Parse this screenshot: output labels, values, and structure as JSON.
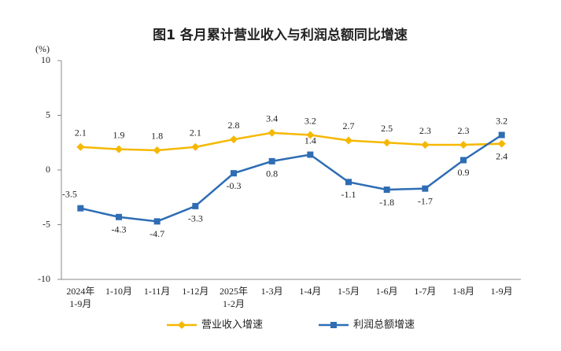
{
  "chart_data": {
    "type": "line",
    "title": "图1 各月累计营业收入与利润总额同比增速",
    "y_label": "(%)",
    "categories": [
      "2024年\n1-9月",
      "1-10月",
      "1-11月",
      "1-12月",
      "2025年\n1-2月",
      "1-3月",
      "1-4月",
      "1-5月",
      "1-6月",
      "1-7月",
      "1-8月",
      "1-9月"
    ],
    "series": [
      {
        "name": "营业收入增速",
        "color": "#f5b800",
        "marker": "diamond",
        "values": [
          2.1,
          1.9,
          1.8,
          2.1,
          2.8,
          3.4,
          3.2,
          2.7,
          2.5,
          2.3,
          2.3,
          2.4
        ]
      },
      {
        "name": "利润总额增速",
        "color": "#2e6db4",
        "marker": "square",
        "values": [
          -3.5,
          -4.3,
          -4.7,
          -3.3,
          -0.3,
          0.8,
          1.4,
          -1.1,
          -1.8,
          -1.7,
          0.9,
          3.2
        ]
      }
    ],
    "ylim": [
      -10,
      10
    ],
    "yticks": [
      -10,
      -5,
      0,
      5,
      10
    ],
    "grid": false,
    "legend": "bottom"
  }
}
